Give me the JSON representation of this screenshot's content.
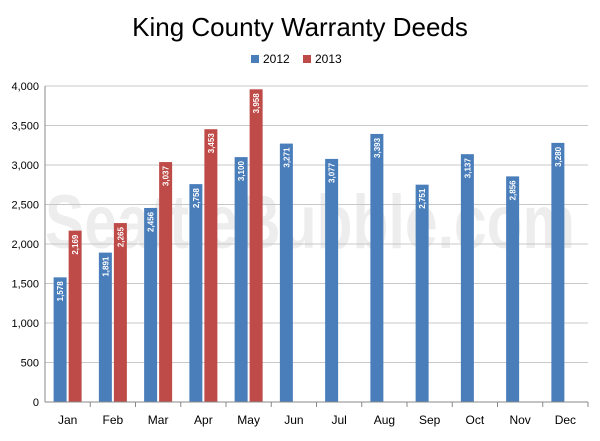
{
  "chart_data": {
    "type": "bar",
    "title": "King County Warranty Deeds",
    "watermark": "SeattleBubble.com",
    "categories": [
      "Jan",
      "Feb",
      "Mar",
      "Apr",
      "May",
      "Jun",
      "Jul",
      "Aug",
      "Sep",
      "Oct",
      "Nov",
      "Dec"
    ],
    "series": [
      {
        "name": "2012",
        "color": "#4a7ebb",
        "values": [
          1578,
          1891,
          2456,
          2758,
          3100,
          3271,
          3077,
          3393,
          2751,
          3137,
          2856,
          3280
        ],
        "labels": [
          "1,578",
          "1,891",
          "2,456",
          "2,758",
          "3,100",
          "3,271",
          "3,077",
          "3,393",
          "2,751",
          "3,137",
          "2,856",
          "3,280"
        ]
      },
      {
        "name": "2013",
        "color": "#be4b48",
        "values": [
          2169,
          2265,
          3037,
          3453,
          3958,
          null,
          null,
          null,
          null,
          null,
          null,
          null
        ],
        "labels": [
          "2,169",
          "2,265",
          "3,037",
          "3,453",
          "3,958",
          "",
          "",
          "",
          "",
          "",
          "",
          ""
        ]
      }
    ],
    "ylim": [
      0,
      4000
    ],
    "yticks": [
      0,
      500,
      1000,
      1500,
      2000,
      2500,
      3000,
      3500,
      4000
    ],
    "ytick_labels": [
      "0",
      "500",
      "1,000",
      "1,500",
      "2,000",
      "2,500",
      "3,000",
      "3,500",
      "4,000"
    ],
    "grid": true,
    "legend_position": "top-center"
  }
}
